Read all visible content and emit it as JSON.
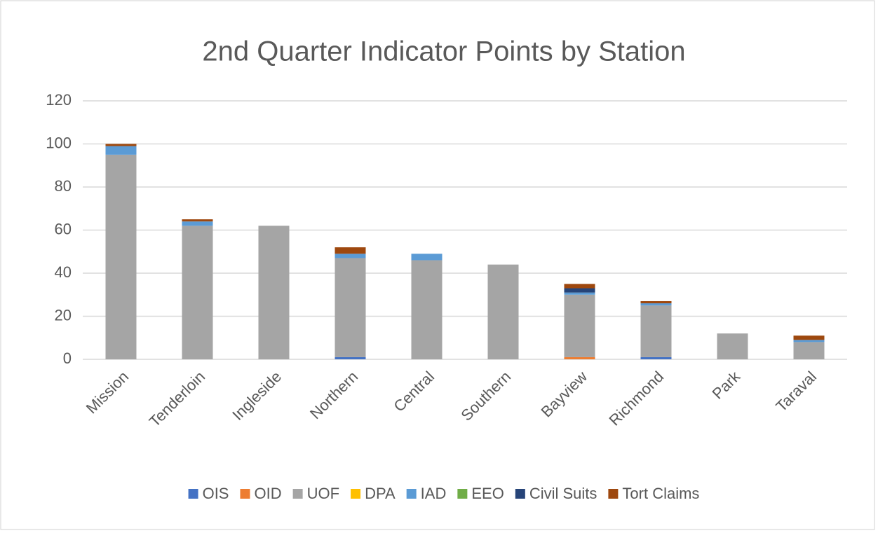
{
  "chart_data": {
    "type": "bar",
    "stacked": true,
    "title": "2nd Quarter Indicator Points by Station",
    "categories": [
      "Mission",
      "Tenderloin",
      "Ingleside",
      "Northern",
      "Central",
      "Southern",
      "Bayview",
      "Richmond",
      "Park",
      "Taraval"
    ],
    "series": [
      {
        "name": "OIS",
        "color": "#4472c4",
        "values": [
          0,
          0,
          0,
          1,
          0,
          0,
          0,
          1,
          0,
          0
        ]
      },
      {
        "name": "OID",
        "color": "#ed7d31",
        "values": [
          0,
          0,
          0,
          0,
          0,
          0,
          1,
          0,
          0,
          0
        ]
      },
      {
        "name": "UOF",
        "color": "#a5a5a5",
        "values": [
          95,
          62,
          62,
          46,
          46,
          44,
          29,
          24,
          12,
          8
        ]
      },
      {
        "name": "DPA",
        "color": "#ffc000",
        "values": [
          0,
          0,
          0,
          0,
          0,
          0,
          0,
          0,
          0,
          0
        ]
      },
      {
        "name": "IAD",
        "color": "#5b9bd5",
        "values": [
          4,
          2,
          0,
          2,
          3,
          0,
          1,
          1,
          0,
          1
        ]
      },
      {
        "name": "EEO",
        "color": "#70ad47",
        "values": [
          0,
          0,
          0,
          0,
          0,
          0,
          0,
          0,
          0,
          0
        ]
      },
      {
        "name": "Civil Suits",
        "color": "#264478",
        "values": [
          0,
          0,
          0,
          0,
          0,
          0,
          2,
          0,
          0,
          0
        ]
      },
      {
        "name": "Tort Claims",
        "color": "#9e480e",
        "values": [
          1,
          1,
          0,
          3,
          0,
          0,
          2,
          1,
          0,
          2
        ]
      }
    ],
    "ylim": [
      0,
      120
    ],
    "yticks": [
      0,
      20,
      40,
      60,
      80,
      100,
      120
    ],
    "grid": true,
    "legend": "bottom"
  }
}
